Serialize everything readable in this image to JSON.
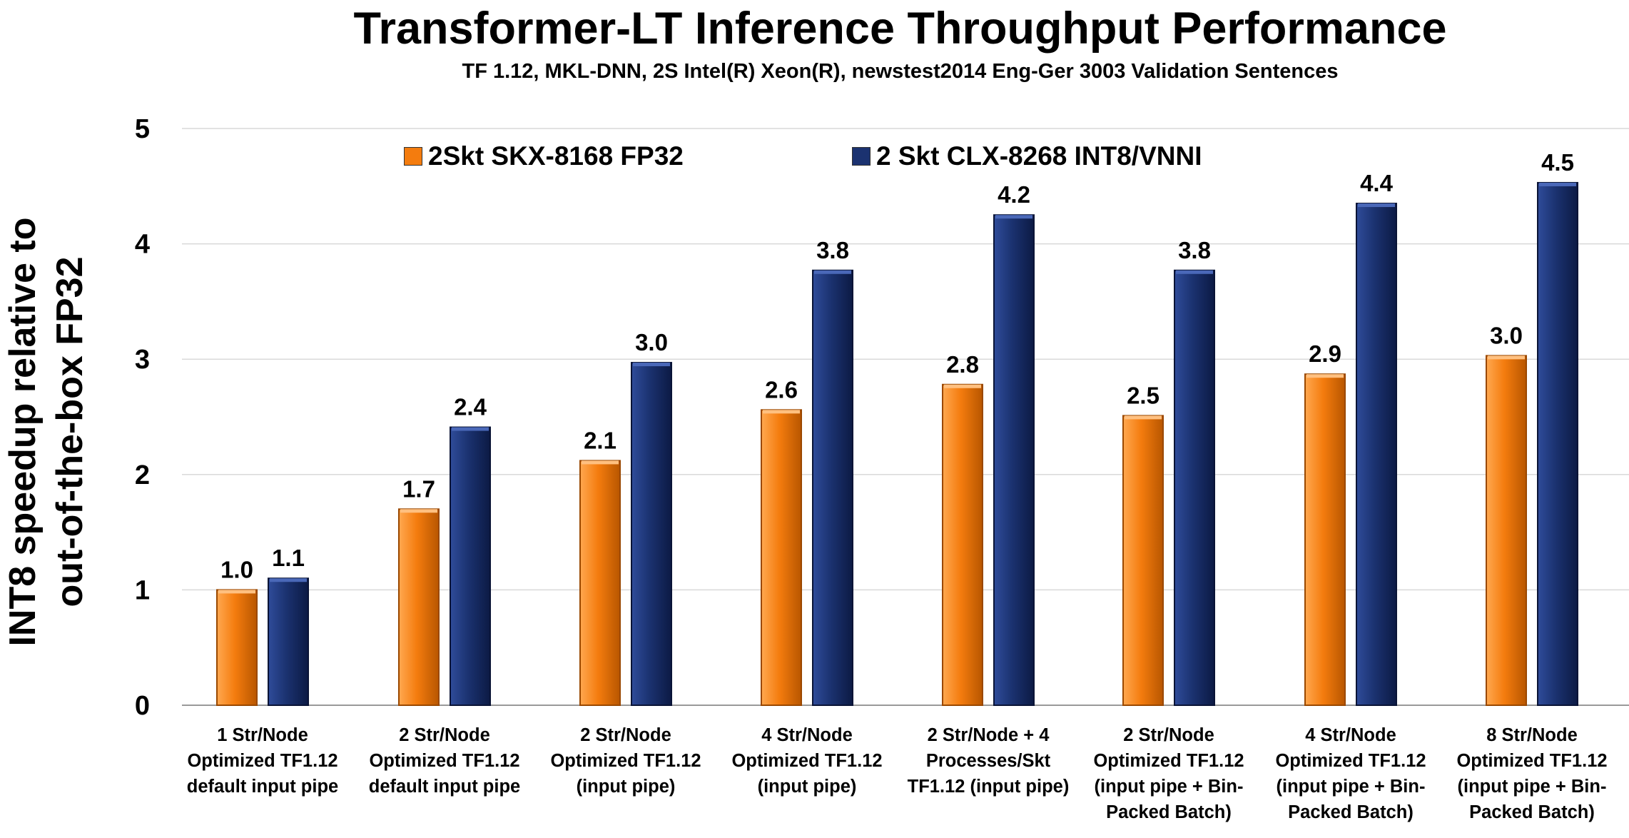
{
  "chart_data": {
    "type": "bar",
    "title": "Transformer-LT Inference Throughput Performance",
    "subtitle": "TF 1.12, MKL-DNN, 2S Intel(R) Xeon(R), newstest2014 Eng-Ger 3003 Validation Sentences",
    "ylabel": "INT8 speedup relative to out-of-the-box FP32",
    "ylabel_lines": [
      "INT8 speedup relative to",
      "out-of-the-box FP32"
    ],
    "xlabel": "",
    "ylim": [
      0,
      5
    ],
    "yticks": [
      "0",
      "1",
      "2",
      "3",
      "4",
      "5"
    ],
    "grid": true,
    "legend_position": "top",
    "categories": [
      "1 Str/Node\nOptimized  TF1.12\ndefault input pipe",
      "2 Str/Node\nOptimized  TF1.12\ndefault input pipe",
      "2 Str/Node\nOptimized TF1.12\n(input pipe)",
      "4 Str/Node\nOptimized TF1.12\n(input pipe)",
      "2 Str/Node + 4\nProcesses/Skt\nTF1.12 (input pipe)",
      "2 Str/Node\nOptimized TF1.12\n(input pipe + Bin-\nPacked Batch)",
      "4 Str/Node\nOptimized TF1.12\n(input pipe + Bin-\nPacked Batch)",
      "8 Str/Node\nOptimized TF1.12\n(input pipe + Bin-\nPacked Batch)"
    ],
    "series": [
      {
        "name": "2Skt SKX-8168 FP32",
        "color": "#F47C0E",
        "values": [
          1.0,
          1.7,
          2.12,
          2.56,
          2.78,
          2.51,
          2.87,
          3.03
        ],
        "labels": [
          "1.0",
          "1.7",
          "2.1",
          "2.6",
          "2.8",
          "2.5",
          "2.9",
          "3.0"
        ]
      },
      {
        "name": "2 Skt CLX-8268 INT8/VNNI",
        "color": "#1B3270",
        "values": [
          1.1,
          2.41,
          2.97,
          3.77,
          4.25,
          3.77,
          4.35,
          4.53
        ],
        "labels": [
          "1.1",
          "2.4",
          "3.0",
          "3.8",
          "4.2",
          "3.8",
          "4.4",
          "4.5"
        ]
      }
    ]
  }
}
